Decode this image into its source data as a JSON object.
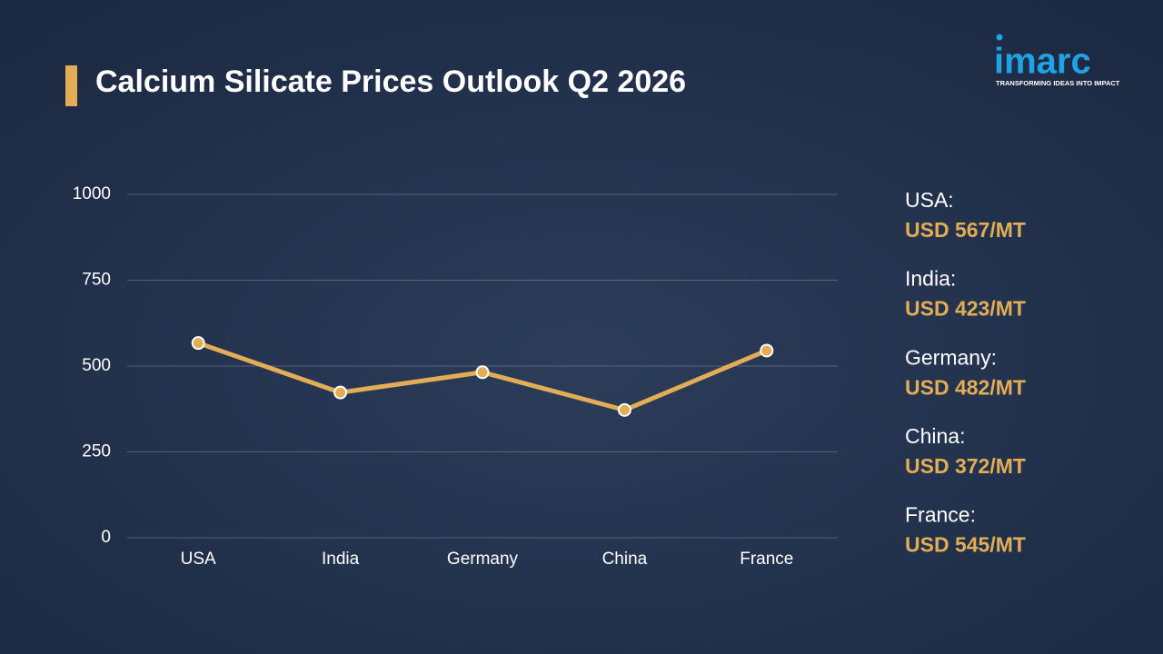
{
  "logo": {
    "name": "imarc",
    "tagline": "TRANSFORMING IDEAS INTO IMPACT"
  },
  "chart_data": {
    "type": "line",
    "title": "Calcium Silicate Prices Outlook Q2 2026",
    "categories": [
      "USA",
      "India",
      "Germany",
      "China",
      "France"
    ],
    "values": [
      567,
      423,
      482,
      372,
      545
    ],
    "value_labels": [
      "USD 567/MT",
      "USD 423/MT",
      "USD 482/MT",
      "USD 372/MT",
      "USD 545/MT"
    ],
    "panel_labels": [
      "USA:",
      "India:",
      "Germany:",
      "China:",
      "France:"
    ],
    "color": "#e3ad55",
    "ylim": [
      0,
      1000
    ],
    "yticks": [
      0,
      250,
      500,
      750,
      1000
    ],
    "grid": true
  }
}
